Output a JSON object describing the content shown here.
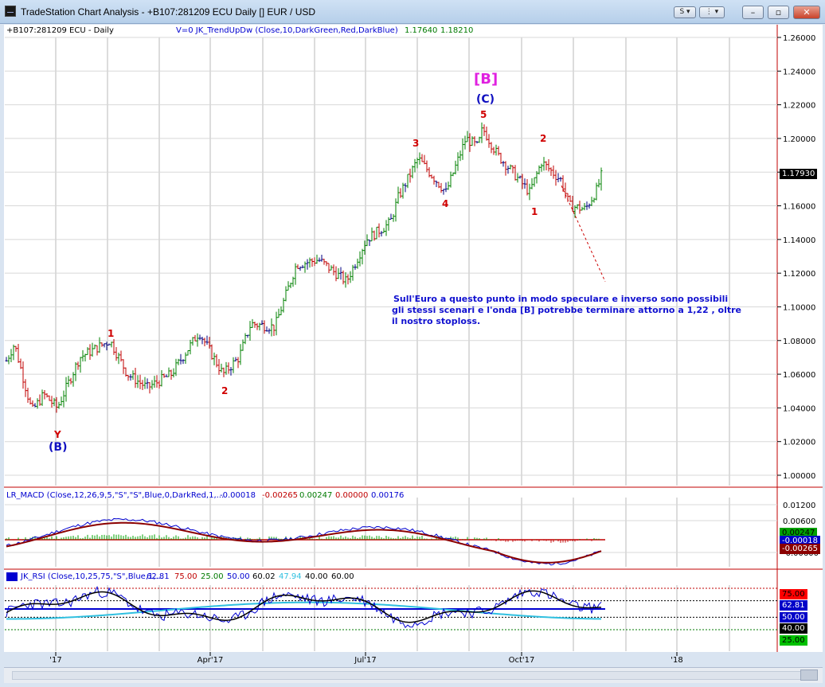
{
  "window": {
    "title": "TradeStation Chart Analysis - +B107:281209 ECU Daily [] EUR / USD",
    "btn_s_label": "S",
    "btn_dots_label": "⋮",
    "btn_minimize": "–",
    "btn_restore": "▫",
    "btn_close": "✕"
  },
  "price_panel": {
    "symbol_label": "+B107:281209 ECU - Daily",
    "indicator_label": "V=0  JK_TrendUpDw (Close,10,DarkGreen,Red,DarkBlue)",
    "indicator_v1": "1.17640",
    "indicator_v2": "1.18210",
    "last_price": "1.17930",
    "y_ticks": [
      "1.26000",
      "1.24000",
      "1.22000",
      "1.20000",
      "1.18000",
      "1.16000",
      "1.14000",
      "1.12000",
      "1.10000",
      "1.08000",
      "1.06000",
      "1.04000",
      "1.02000",
      "1.00000"
    ],
    "wave_labels": {
      "bracket_b": "[B]",
      "paren_c": "(C)",
      "w5": "5",
      "w3": "3",
      "w4": "4",
      "w2_right": "2",
      "w1_right": "1",
      "w1_left": "1",
      "w2_left": "2",
      "wy": "Y",
      "paren_b": "(B)"
    },
    "annotation_line1": "Sull'Euro a questo punto in modo speculare e inverso sono possibili",
    "annotation_line2": "gli stessi scenari  e l'onda [B] potrebbe terminare attorno a 1,22 , oltre",
    "annotation_line3": "il nostro stoploss."
  },
  "macd_panel": {
    "label": "LR_MACD (Close,12,26,9,5,\"S\",\"S\",Blue,0,DarkRed,1,...",
    "v1": "-0.00018",
    "v2": "-0.00265",
    "v3": "0.00247",
    "v4": "0.00000",
    "v5": "0.00176",
    "y_ticks": [
      "0.01200",
      "0.00600",
      "-0.00600"
    ],
    "tag_green": "0.00247",
    "tag_blue": "-0.00018",
    "tag_red": "-0.00265"
  },
  "rsi_panel": {
    "label": "JK_RSI (Close,10,25,75,\"S\",Blue,1,...",
    "v1": "62.81",
    "v2": "75.00",
    "v3": "25.00",
    "v4": "50.00",
    "v5": "60.02",
    "v6": "47.94",
    "v7": "40.00",
    "v8": "60.00",
    "tag_75": "75.00",
    "tag_6281": "62.81",
    "tag_50": "50.00",
    "tag_40": "40.00",
    "tag_25": "25.00"
  },
  "x_axis": {
    "ticks": [
      "'17",
      "Apr'17",
      "Jul'17",
      "Oct'17",
      "'18"
    ]
  },
  "colors": {
    "up_bar": "#008000",
    "down_bar": "#c00000",
    "neutral_bar": "#000080",
    "accent_red": "#cc0000",
    "magenta": "#e020e0",
    "wave_blue": "#1010c0"
  }
}
